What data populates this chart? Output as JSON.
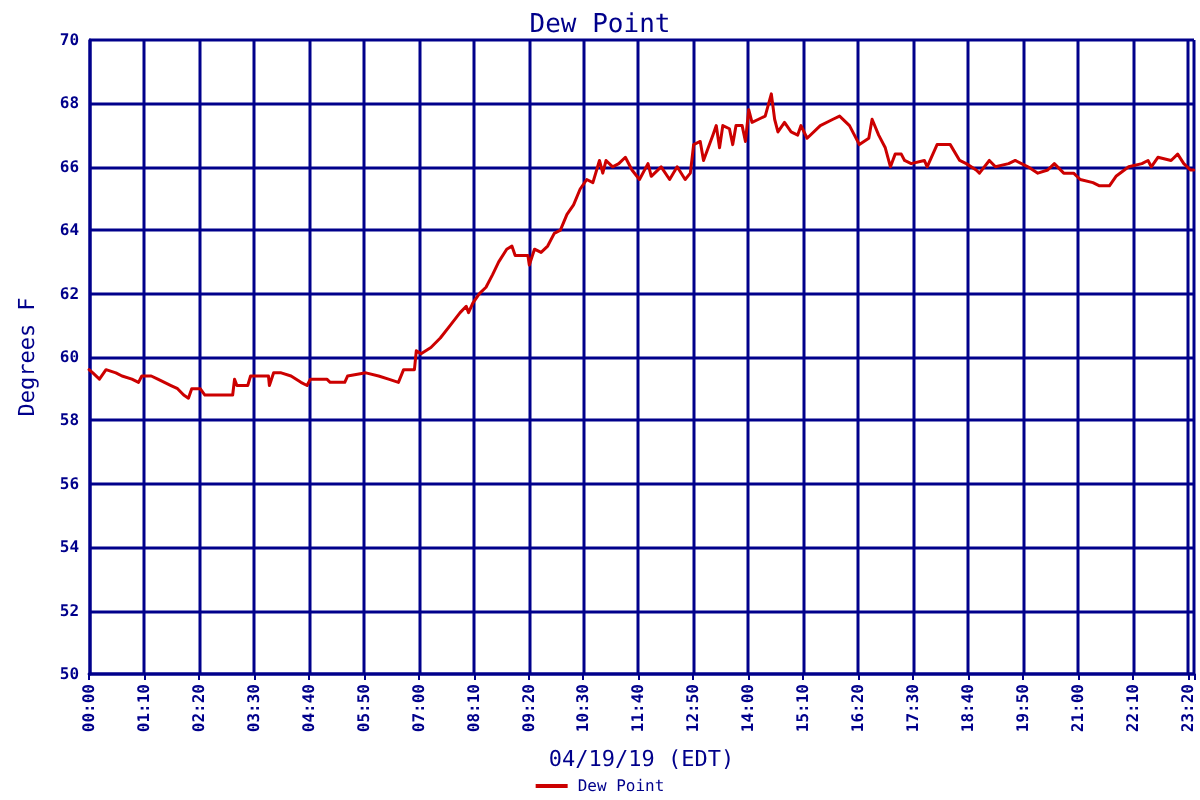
{
  "chart_data": {
    "type": "line",
    "title": "Dew Point",
    "xlabel": "04/19/19 (EDT)",
    "ylabel": "Degrees F",
    "x": [
      0,
      0.08,
      0.22,
      0.36,
      0.57,
      0.7,
      0.91,
      1.05,
      1.12,
      1.32,
      1.46,
      1.6,
      1.74,
      1.88,
      2.01,
      2.11,
      2.18,
      2.36,
      2.46,
      3.05,
      3.09,
      3.14,
      3.37,
      3.43,
      3.53,
      3.81,
      3.83,
      3.92,
      4.08,
      4.29,
      4.5,
      4.63,
      4.7,
      5.05,
      5.12,
      5.43,
      5.49,
      5.88,
      6.15,
      6.36,
      6.57,
      6.68,
      6.91,
      6.95,
      7.05,
      7.26,
      7.46,
      7.67,
      7.88,
      8.01,
      8.06,
      8.15,
      8.29,
      8.43,
      8.57,
      8.7,
      8.87,
      8.98,
      9.05,
      9.32,
      9.35,
      9.46,
      9.6,
      9.74,
      9.88,
      10.01,
      10.15,
      10.29,
      10.43,
      10.57,
      10.7,
      10.84,
      10.91,
      10.98,
      11.12,
      11.25,
      11.39,
      11.53,
      11.69,
      11.87,
      11.94,
      12.15,
      12.33,
      12.49,
      12.66,
      12.77,
      12.84,
      12.98,
      13.05,
      13.25,
      13.32,
      13.39,
      13.46,
      13.6,
      13.67,
      13.74,
      13.87,
      13.94,
      14.01,
      14.08,
      14.22,
      14.36,
      14.49,
      14.56,
      14.63,
      14.77,
      14.91,
      15.05,
      15.12,
      15.25,
      15.53,
      15.8,
      15.94,
      16.15,
      16.36,
      16.56,
      16.63,
      16.77,
      16.91,
      17.02,
      17.12,
      17.25,
      17.32,
      17.46,
      17.74,
      17.8,
      18.01,
      18.15,
      18.29,
      18.49,
      18.63,
      18.84,
      18.91,
      19.12,
      19.25,
      19.53,
      19.67,
      19.94,
      20.15,
      20.36,
      20.5,
      20.7,
      20.91,
      21.05,
      21.32,
      21.46,
      21.67,
      21.81,
      22.08,
      22.36,
      22.49,
      22.56,
      22.7,
      22.98,
      23.12,
      23.25,
      23.39,
      23.46
    ],
    "series": [
      {
        "name": "Dew Point",
        "color": "#cc0000",
        "values": [
          59.6,
          59.5,
          59.3,
          59.6,
          59.5,
          59.4,
          59.3,
          59.2,
          59.4,
          59.4,
          59.3,
          59.2,
          59.1,
          59.0,
          58.8,
          58.7,
          59.0,
          59.0,
          58.8,
          58.8,
          59.3,
          59.1,
          59.1,
          59.4,
          59.4,
          59.4,
          59.1,
          59.5,
          59.5,
          59.4,
          59.2,
          59.1,
          59.3,
          59.3,
          59.2,
          59.2,
          59.4,
          59.5,
          59.4,
          59.3,
          59.2,
          59.6,
          59.6,
          60.2,
          60.1,
          60.3,
          60.6,
          61.0,
          61.4,
          61.6,
          61.4,
          61.7,
          62.0,
          62.2,
          62.6,
          63.0,
          63.4,
          63.5,
          63.2,
          63.2,
          62.9,
          63.4,
          63.3,
          63.5,
          63.9,
          64.0,
          64.5,
          64.8,
          65.3,
          65.6,
          65.5,
          66.2,
          65.8,
          66.2,
          66.0,
          66.1,
          66.3,
          65.9,
          65.6,
          66.1,
          65.7,
          66.0,
          65.6,
          66.0,
          65.6,
          65.8,
          66.7,
          66.8,
          66.2,
          67.0,
          67.3,
          66.6,
          67.3,
          67.2,
          66.7,
          67.3,
          67.3,
          66.8,
          67.8,
          67.4,
          67.5,
          67.6,
          68.3,
          67.5,
          67.1,
          67.4,
          67.1,
          67.0,
          67.3,
          66.9,
          67.3,
          67.5,
          67.6,
          67.3,
          66.7,
          66.9,
          67.5,
          67.0,
          66.6,
          66.0,
          66.4,
          66.4,
          66.2,
          66.1,
          66.2,
          66.0,
          66.7,
          66.7,
          66.7,
          66.2,
          66.1,
          65.9,
          65.8,
          66.2,
          66.0,
          66.1,
          66.2,
          66.0,
          65.8,
          65.9,
          66.1,
          65.8,
          65.8,
          65.6,
          65.5,
          65.4,
          65.4,
          65.7,
          66.0,
          66.1,
          66.2,
          66.0,
          66.3,
          66.2,
          66.4,
          66.1,
          65.9,
          65.9
        ]
      }
    ],
    "xlim": [
      0,
      23.4667
    ],
    "xticks": [
      {
        "value": 0,
        "label": "00:00"
      },
      {
        "value": 1.1667,
        "label": "01:10"
      },
      {
        "value": 2.3333,
        "label": "02:20"
      },
      {
        "value": 3.5,
        "label": "03:30"
      },
      {
        "value": 4.6667,
        "label": "04:40"
      },
      {
        "value": 5.8333,
        "label": "05:50"
      },
      {
        "value": 7,
        "label": "07:00"
      },
      {
        "value": 8.1667,
        "label": "08:10"
      },
      {
        "value": 9.3333,
        "label": "09:20"
      },
      {
        "value": 10.5,
        "label": "10:30"
      },
      {
        "value": 11.6667,
        "label": "11:40"
      },
      {
        "value": 12.8333,
        "label": "12:50"
      },
      {
        "value": 14,
        "label": "14:00"
      },
      {
        "value": 15.1667,
        "label": "15:10"
      },
      {
        "value": 16.3333,
        "label": "16:20"
      },
      {
        "value": 17.5,
        "label": "17:30"
      },
      {
        "value": 18.6667,
        "label": "18:40"
      },
      {
        "value": 19.8333,
        "label": "19:50"
      },
      {
        "value": 21,
        "label": "21:00"
      },
      {
        "value": 22.1667,
        "label": "22:10"
      },
      {
        "value": 23.3333,
        "label": "23:20"
      },
      {
        "value": 23.4667,
        "label": null
      }
    ],
    "ylim": [
      50,
      70
    ],
    "yticks": [
      50,
      52,
      54,
      56,
      58,
      60,
      62,
      64,
      66,
      68,
      70
    ],
    "grid": true,
    "legend": "bottom",
    "marker": "none"
  }
}
